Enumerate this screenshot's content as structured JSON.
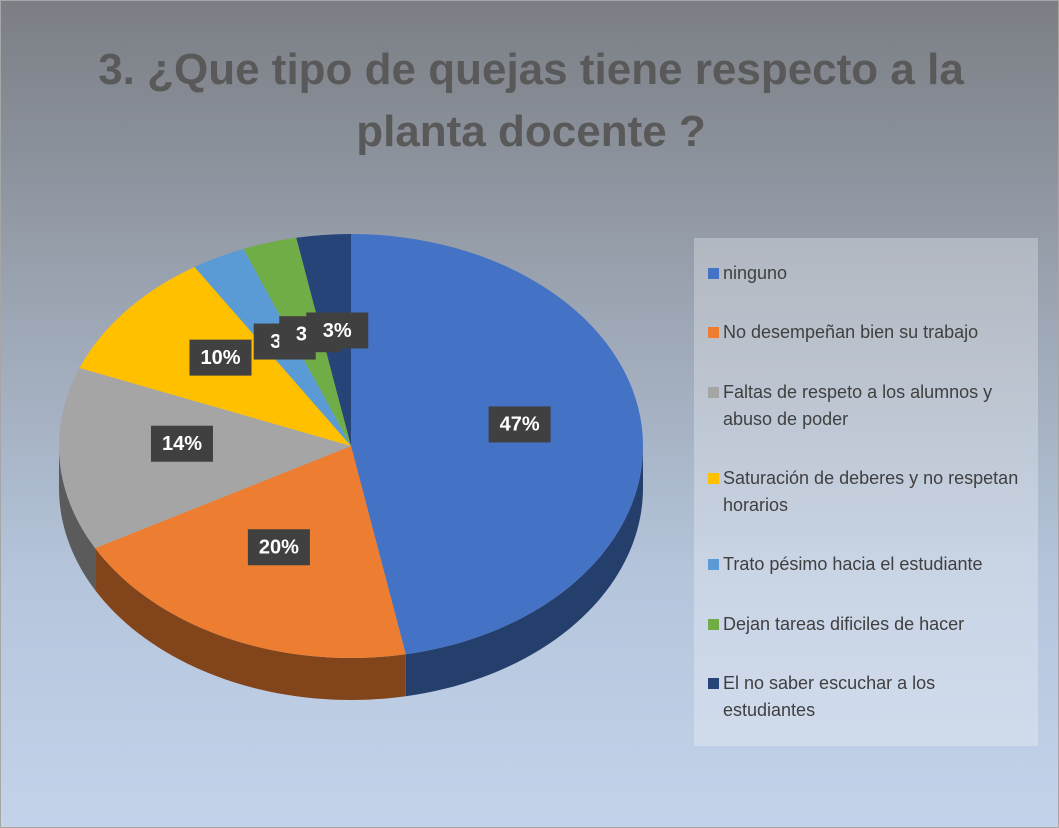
{
  "chart_data": {
    "type": "pie",
    "title": "3. ¿Que tipo de quejas tiene respecto a la planta docente ?",
    "categories": [
      "ninguno",
      "No desempeñan bien su trabajo",
      "Faltas de respeto a los alumnos y abuso de poder",
      "Saturación de deberes y no respetan horarios",
      "Trato pésimo hacia el estudiante",
      "Dejan tareas dificiles de hacer",
      "El no saber escuchar a los estudiantes"
    ],
    "values": [
      47,
      20,
      14,
      10,
      3,
      3,
      3
    ],
    "value_labels": [
      "47%",
      "20%",
      "14%",
      "10%",
      "3%",
      "3%",
      "3%"
    ],
    "colors": [
      "#4472c4",
      "#ed7d31",
      "#a5a5a5",
      "#ffc000",
      "#5b9bd5",
      "#70ad47",
      "#264478"
    ],
    "legend": "right"
  }
}
